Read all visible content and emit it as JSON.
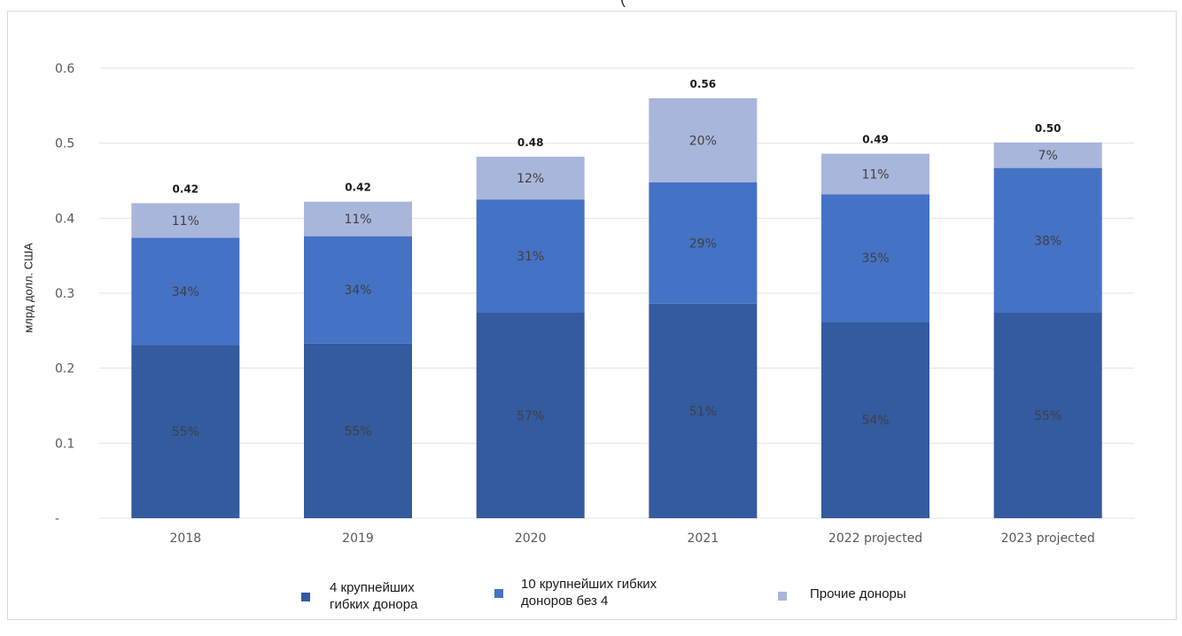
{
  "chart_data": {
    "type": "bar",
    "stacked": true,
    "title": "",
    "xlabel": "",
    "ylabel": "млрд долл. США",
    "ylim": [
      0,
      0.6
    ],
    "yticks": [
      "-",
      "0.1",
      "0.2",
      "0.3",
      "0.4",
      "0.5",
      "0.6"
    ],
    "grid": true,
    "legend_position": "bottom",
    "categories": [
      "2018",
      "2019",
      "2020",
      "2021",
      "2022 projected",
      "2023 projected"
    ],
    "totals": [
      0.42,
      0.42,
      0.48,
      0.56,
      0.49,
      0.5
    ],
    "total_labels": [
      "0.42",
      "0.42",
      "0.48",
      "0.56",
      "0.49",
      "0.50"
    ],
    "series": [
      {
        "name": "4 крупнейших гибких донора",
        "color": "#345a9f",
        "values": [
          0.231,
          0.233,
          0.274,
          0.286,
          0.262,
          0.274
        ],
        "labels": [
          "55%",
          "55%",
          "57%",
          "51%",
          "54%",
          "55%"
        ]
      },
      {
        "name": "10 крупнейших гибких доноров без 4",
        "color": "#4472c4",
        "values": [
          0.143,
          0.143,
          0.151,
          0.162,
          0.17,
          0.193
        ],
        "labels": [
          "34%",
          "34%",
          "31%",
          "29%",
          "35%",
          "38%"
        ]
      },
      {
        "name": "Прочие доноры",
        "color": "#a9b6db",
        "values": [
          0.046,
          0.046,
          0.057,
          0.112,
          0.054,
          0.034
        ],
        "labels": [
          "11%",
          "11%",
          "12%",
          "20%",
          "11%",
          "7%"
        ]
      }
    ]
  },
  "colors": {
    "grid": "#e3e3e3",
    "tick_text": "#595959",
    "segment_label": "#404040",
    "total_label": "#1a1a1a"
  }
}
